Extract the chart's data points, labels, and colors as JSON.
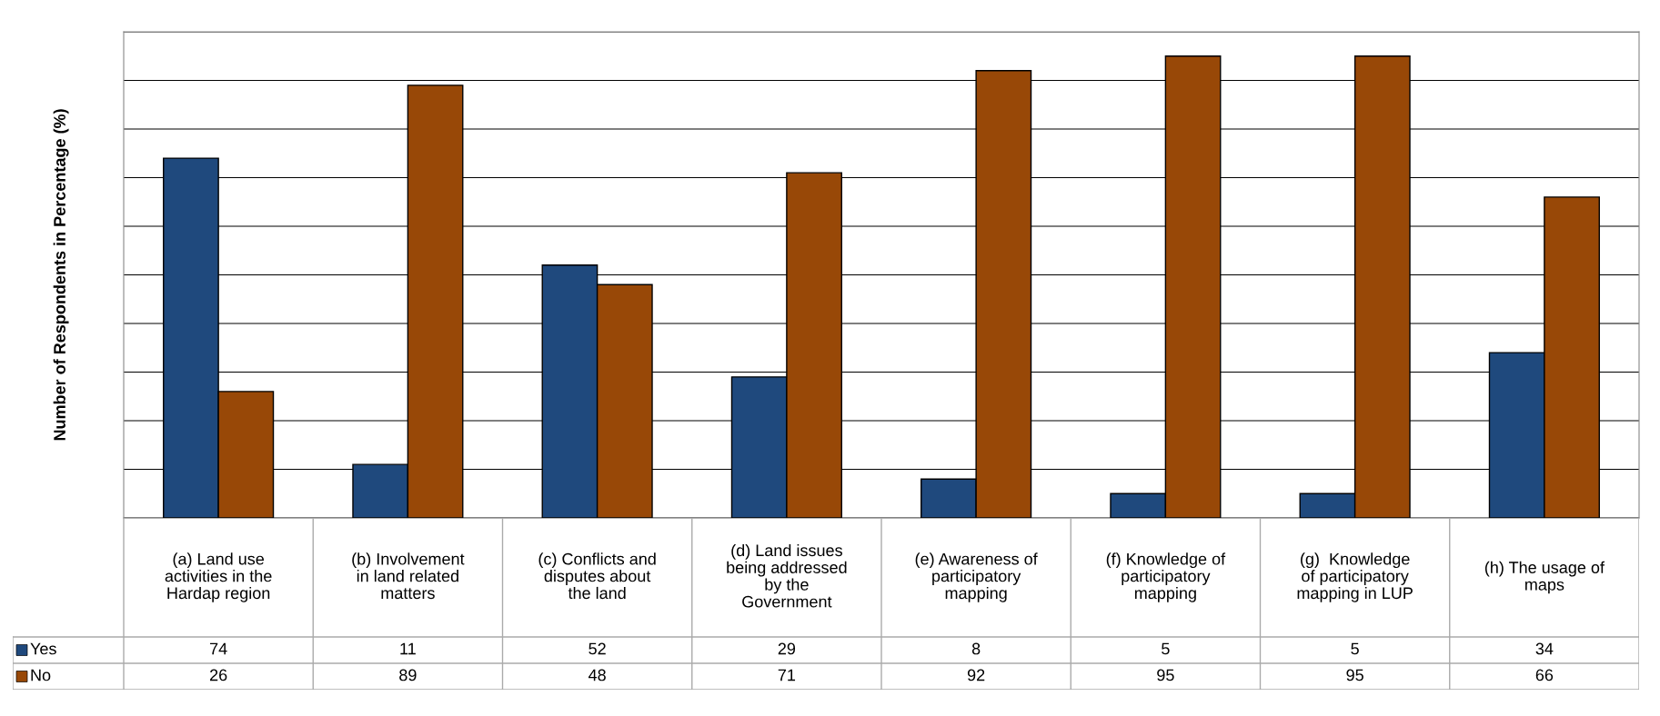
{
  "chart_data": {
    "type": "bar",
    "ylabel": "Number of Respondents in Percentage (%)",
    "categories": [
      "(a) Land use\nactivities in the\nHardap region",
      "(b) Involvement\nin land related\nmatters",
      "(c) Conflicts and\ndisputes about\nthe land",
      "(d) Land issues\nbeing addressed\nby the\nGovernment",
      "(e) Awareness of\nparticipatory\nmapping",
      "(f) Knowledge of\nparticipatory\nmapping",
      "(g)  Knowledge\nof participatory\nmapping in LUP",
      "(h) The usage of\nmaps"
    ],
    "series": [
      {
        "name": "Yes",
        "color": "#1f497d",
        "values": [
          74,
          11,
          52,
          29,
          8,
          5,
          5,
          34
        ]
      },
      {
        "name": "No",
        "color": "#984807",
        "values": [
          26,
          89,
          48,
          71,
          92,
          95,
          95,
          66
        ]
      }
    ],
    "ylim": [
      0,
      100
    ],
    "yticks": [
      {
        "value": 0,
        "label": null
      },
      {
        "value": 10,
        "label": null
      },
      {
        "value": 20,
        "label": null
      },
      {
        "value": 30,
        "label": null
      },
      {
        "value": 40,
        "label": null
      },
      {
        "value": 50,
        "label": null
      },
      {
        "value": 60,
        "label": null
      },
      {
        "value": 70,
        "label": null
      },
      {
        "value": 80,
        "label": null
      },
      {
        "value": 90,
        "label": null
      },
      {
        "value": 100,
        "label": null
      }
    ],
    "grid": "y",
    "legend": "bottom",
    "data_labels": true
  }
}
